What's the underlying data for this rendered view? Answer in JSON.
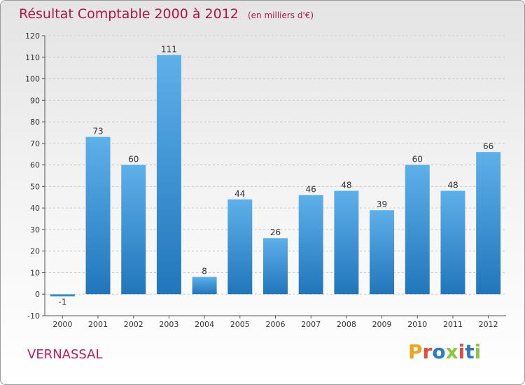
{
  "title": "Résultat Comptable 2000 à 2012",
  "subtitle": "(en milliers d'€)",
  "commune": "VERNASSAL",
  "brand": {
    "letters": [
      "P",
      "r",
      "o",
      "x",
      "i",
      "t",
      "i"
    ],
    "colors": [
      "#f2a31b",
      "#e84c3d",
      "#2b7cc7",
      "#8dc63f",
      "#e84c3d",
      "#2b7cc7",
      "#8dc63f"
    ]
  },
  "colors": {
    "bar_top": "#5eb0ea",
    "bar_bottom": "#2176bb",
    "title": "#b0154a"
  },
  "chart_data": {
    "type": "bar",
    "categories": [
      "2000",
      "2001",
      "2002",
      "2003",
      "2004",
      "2005",
      "2006",
      "2007",
      "2008",
      "2009",
      "2010",
      "2011",
      "2012"
    ],
    "values": [
      -1,
      73,
      60,
      111,
      8,
      44,
      26,
      46,
      48,
      39,
      60,
      48,
      66
    ],
    "data_labels": [
      "-1",
      "73",
      "60",
      "111",
      "8",
      "44",
      "26",
      "46",
      "48",
      "39",
      "60",
      "48",
      "66"
    ],
    "y_ticks": [
      "-10",
      "0",
      "10",
      "20",
      "30",
      "40",
      "50",
      "60",
      "70",
      "80",
      "90",
      "100",
      "110",
      "120"
    ],
    "ylim": [
      -10,
      120
    ],
    "grid": "horizontal dashed",
    "legend": "none"
  }
}
